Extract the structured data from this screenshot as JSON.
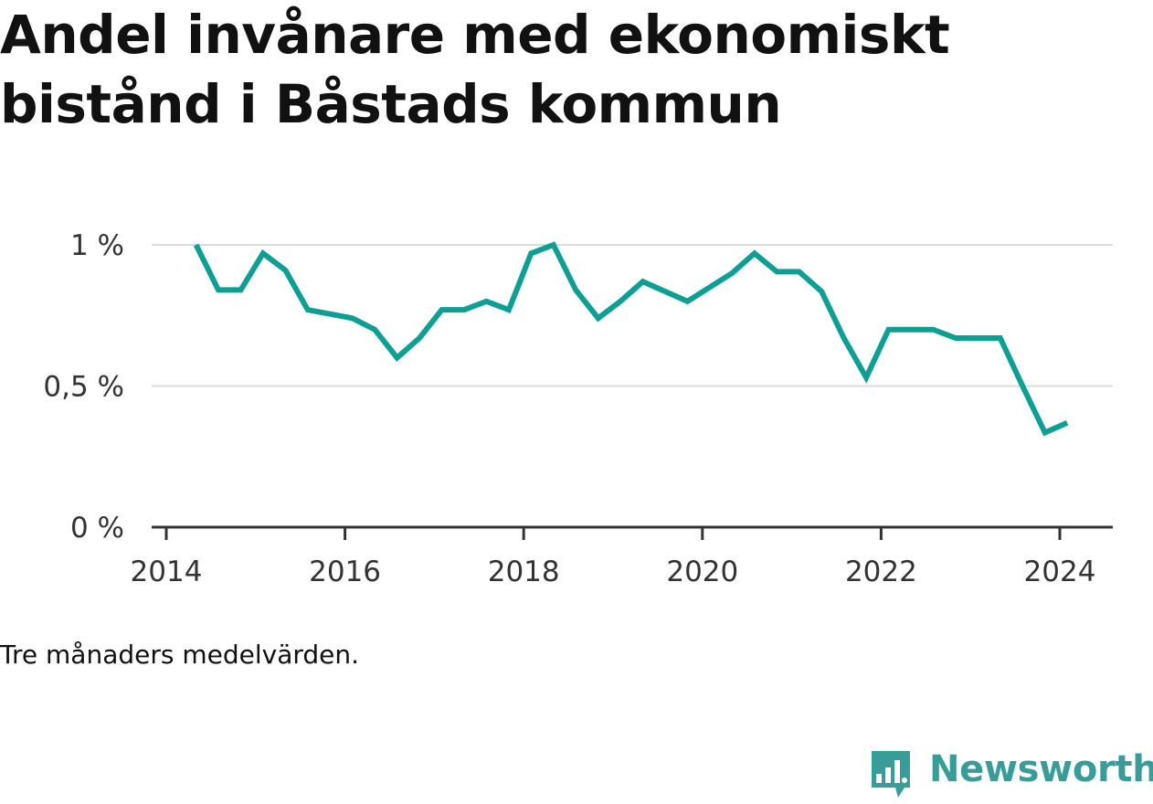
{
  "title": "Andel invånare med ekonomiskt bistånd i Båstads kommun",
  "note": "Tre månaders medelvärden.",
  "brand": {
    "name": "Newsworthy",
    "icon": "bar-chart-speech-bubble-icon",
    "color": "#3a9c99"
  },
  "colors": {
    "line": "#0e9f94",
    "grid": "#dcdcdc",
    "axis": "#333333"
  },
  "chart_data": {
    "type": "line",
    "title": "Andel invånare med ekonomiskt bistånd i Båstads kommun",
    "xlabel": "",
    "ylabel": "",
    "ylim": [
      0,
      1
    ],
    "y_ticks": [
      {
        "value": 0,
        "label": "0 %"
      },
      {
        "value": 0.5,
        "label": "0,5 %"
      },
      {
        "value": 1,
        "label": "1 %"
      }
    ],
    "x_ticks": [
      "2014",
      "2016",
      "2018",
      "2020",
      "2022",
      "2024"
    ],
    "grid": "horizontal",
    "series": [
      {
        "x": [
          "2014-05",
          "2014-08",
          "2014-11",
          "2015-02",
          "2015-05",
          "2015-08",
          "2015-11",
          "2016-02",
          "2016-05",
          "2016-08",
          "2016-11",
          "2017-02",
          "2017-05",
          "2017-08",
          "2017-11",
          "2018-02",
          "2018-05",
          "2018-08",
          "2018-11",
          "2019-02",
          "2019-05",
          "2019-08",
          "2019-11",
          "2020-02",
          "2020-05",
          "2020-08",
          "2020-11",
          "2021-02",
          "2021-05",
          "2021-08",
          "2021-11",
          "2022-02",
          "2022-05",
          "2022-08",
          "2022-11",
          "2023-02",
          "2023-05",
          "2023-08",
          "2023-11",
          "2024-02"
        ],
        "values": [
          1.0,
          0.84,
          0.84,
          0.97,
          0.91,
          0.77,
          0.755,
          0.74,
          0.7,
          0.6,
          0.67,
          0.77,
          0.77,
          0.8,
          0.77,
          0.97,
          1.0,
          0.84,
          0.74,
          0.8,
          0.87,
          0.835,
          0.8,
          0.85,
          0.9,
          0.97,
          0.905,
          0.905,
          0.835,
          0.67,
          0.53,
          0.7,
          0.7,
          0.7,
          0.67,
          0.67,
          0.67,
          0.5,
          0.335,
          0.37
        ]
      }
    ]
  }
}
